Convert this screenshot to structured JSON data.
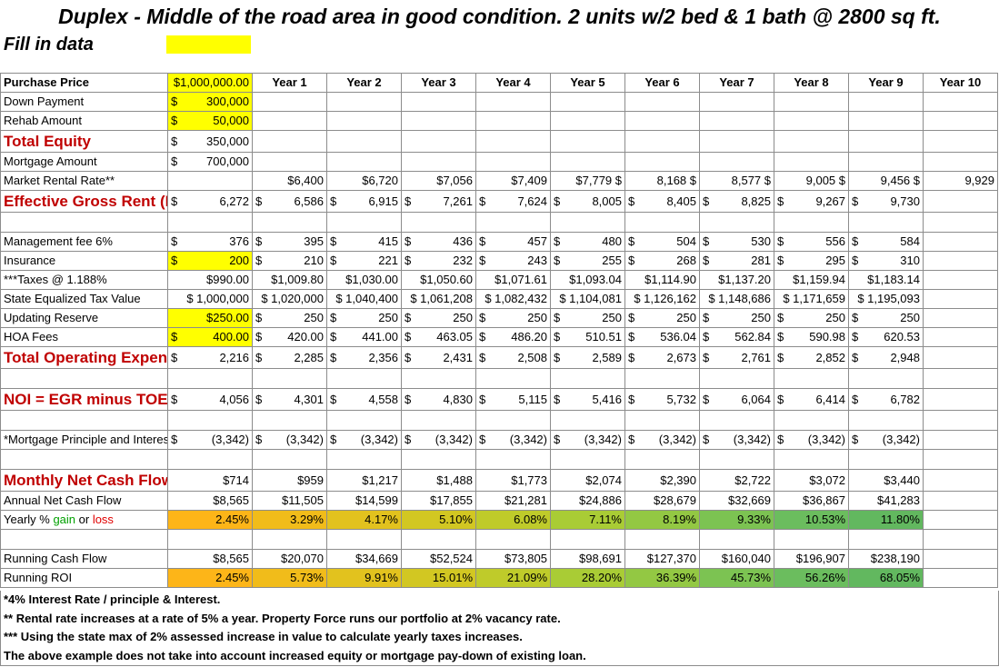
{
  "title": "Duplex - Middle of the road area in good condition.  2 units w/2 bed  & 1 bath @ 2800 sq ft.",
  "fill_in_label": "Fill in data",
  "years": [
    "Year 1",
    "Year 2",
    "Year 3",
    "Year 4",
    "Year 5",
    "Year 6",
    "Year 7",
    "Year 8",
    "Year 9",
    "Year 10"
  ],
  "inputs": {
    "purchase_price": {
      "label": "Purchase Price",
      "value": "$1,000,000.00"
    },
    "down_payment": {
      "label": "Down Payment",
      "sym": "$",
      "value": "300,000"
    },
    "rehab_amount": {
      "label": "Rehab Amount",
      "sym": "$",
      "value": "50,000"
    },
    "total_equity": {
      "label": "Total Equity",
      "sym": "$",
      "value": "350,000"
    },
    "mortgage_amount": {
      "label": "Mortgage Amount",
      "sym": "$",
      "value": "700,000"
    }
  },
  "rows": {
    "market_rent": {
      "label": "Market Rental Rate**",
      "values": [
        "$6,400",
        "$6,720",
        "$7,056",
        "$7,409",
        "$7,779 $",
        "8,168 $",
        "8,577 $",
        "9,005 $",
        "9,456 $",
        "9,929"
      ]
    },
    "egr": {
      "label": "Effective Gross Rent (EGR)",
      "values": [
        "6,272",
        "6,586",
        "6,915",
        "7,261",
        "7,624",
        "8,005",
        "8,405",
        "8,825",
        "9,267",
        "9,730"
      ]
    },
    "management": {
      "label": "Management fee 6%",
      "values": [
        "376",
        "395",
        "415",
        "436",
        "457",
        "480",
        "504",
        "530",
        "556",
        "584"
      ]
    },
    "insurance": {
      "label": "Insurance",
      "values": [
        "200",
        "210",
        "221",
        "232",
        "243",
        "255",
        "268",
        "281",
        "295",
        "310"
      ]
    },
    "taxes": {
      "label": "***Taxes @ 1.188%",
      "values": [
        "$990.00",
        "$1,009.80",
        "$1,030.00",
        "$1,050.60",
        "$1,071.61",
        "$1,093.04",
        "$1,114.90",
        "$1,137.20",
        "$1,159.94",
        "$1,183.14"
      ]
    },
    "state_tax_value": {
      "label": "State Equalized Tax Value",
      "values": [
        "$ 1,000,000",
        "$ 1,020,000",
        "$ 1,040,400",
        "$ 1,061,208",
        "$ 1,082,432",
        "$ 1,104,081",
        "$ 1,126,162",
        "$ 1,148,686",
        "$ 1,171,659",
        "$ 1,195,093"
      ]
    },
    "updating_reserve": {
      "label": "Updating Reserve",
      "first": "$250.00",
      "values": [
        "250",
        "250",
        "250",
        "250",
        "250",
        "250",
        "250",
        "250",
        "250"
      ]
    },
    "hoa": {
      "label": "HOA Fees",
      "values": [
        "400.00",
        "420.00",
        "441.00",
        "463.05",
        "486.20",
        "510.51",
        "536.04",
        "562.84",
        "590.98",
        "620.53"
      ]
    },
    "toe": {
      "label": "Total Operating Expenses (TOE)",
      "values": [
        "2,216",
        "2,285",
        "2,356",
        "2,431",
        "2,508",
        "2,589",
        "2,673",
        "2,761",
        "2,852",
        "2,948"
      ]
    },
    "noi": {
      "label": "NOI = EGR minus TOE",
      "values": [
        "4,056",
        "4,301",
        "4,558",
        "4,830",
        "5,115",
        "5,416",
        "5,732",
        "6,064",
        "6,414",
        "6,782"
      ]
    },
    "mortgage_pi": {
      "label": "*Mortgage Principle and Interest",
      "values": [
        "(3,342)",
        "(3,342)",
        "(3,342)",
        "(3,342)",
        "(3,342)",
        "(3,342)",
        "(3,342)",
        "(3,342)",
        "(3,342)",
        "(3,342)"
      ]
    },
    "monthly_ncf": {
      "label": "Monthly Net Cash Flow",
      "values": [
        "$714",
        "$959",
        "$1,217",
        "$1,488",
        "$1,773",
        "$2,074",
        "$2,390",
        "$2,722",
        "$3,072",
        "$3,440"
      ]
    },
    "annual_ncf": {
      "label": "Annual Net Cash Flow",
      "values": [
        "$8,565",
        "$11,505",
        "$14,599",
        "$17,855",
        "$21,281",
        "$24,886",
        "$28,679",
        "$32,669",
        "$36,867",
        "$41,283"
      ]
    },
    "yearly_pct": {
      "label_pre": "Yearly % ",
      "label_gain": "gain",
      "label_mid": " or ",
      "label_loss": "loss",
      "values": [
        "2.45%",
        "3.29%",
        "4.17%",
        "5.10%",
        "6.08%",
        "7.11%",
        "8.19%",
        "9.33%",
        "10.53%",
        "11.80%"
      ]
    },
    "running_cf": {
      "label": "Running Cash Flow",
      "values": [
        "$8,565",
        "$20,070",
        "$34,669",
        "$52,524",
        "$73,805",
        "$98,691",
        "$127,370",
        "$160,040",
        "$196,907",
        "$238,190"
      ]
    },
    "running_roi": {
      "label": "Running ROI",
      "values": [
        "2.45%",
        "5.73%",
        "9.91%",
        "15.01%",
        "21.09%",
        "28.20%",
        "36.39%",
        "45.73%",
        "56.26%",
        "68.05%"
      ]
    }
  },
  "heatmap_colors": [
    "#fdb518",
    "#f1bc1a",
    "#e2c21e",
    "#d2c722",
    "#bfcb2a",
    "#a9cc35",
    "#93c843",
    "#7cc352",
    "#6bbd5e",
    "#62b85f"
  ],
  "notes": [
    "*4% Interest Rate / principle & Interest.",
    "** Rental rate increases at a rate of 5% a year.  Property Force runs our portfolio at 2% vacancy rate.",
    "*** Using the state max of 2% assessed increase in value to calculate yearly taxes increases.",
    "The above example does not take into account increased equity or mortgage pay-down of existing loan."
  ]
}
